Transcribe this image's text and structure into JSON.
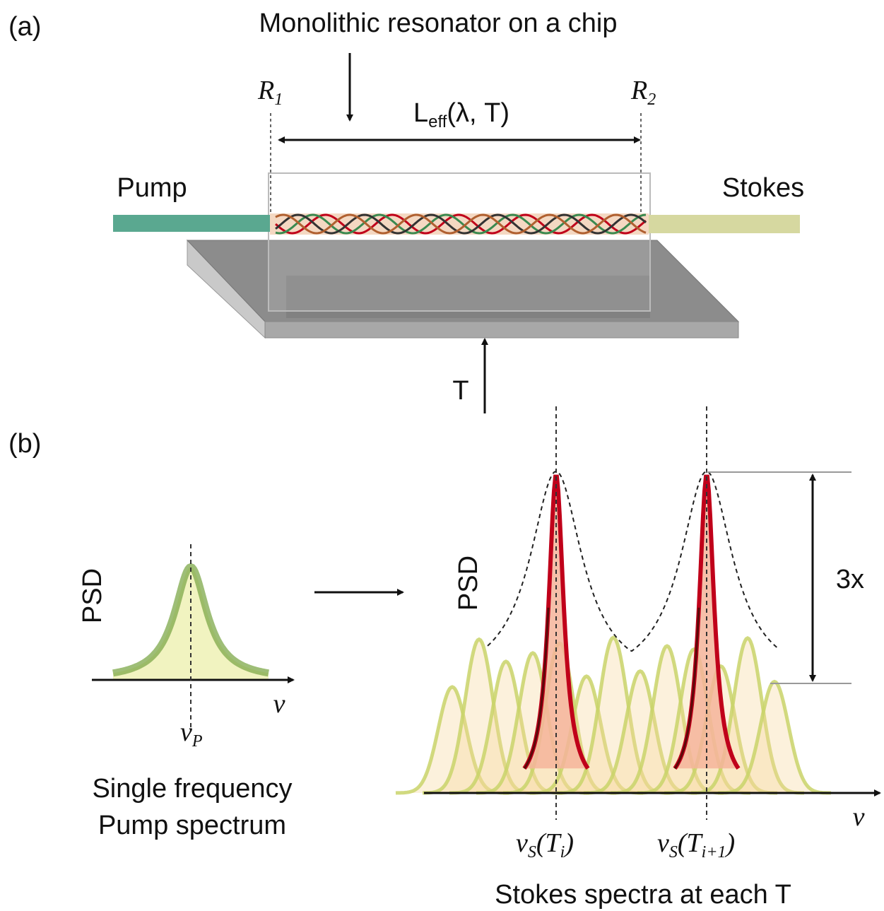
{
  "panel_a": {
    "label": "(a)",
    "title": "Monolithic resonator on a chip",
    "mirror_1": {
      "symbol": "R",
      "subscript": "1"
    },
    "mirror_2": {
      "symbol": "R",
      "subscript": "2"
    },
    "cavity_length": {
      "symbol": "L",
      "subscript": "eff",
      "arguments": "(λ, T)"
    },
    "input": "Pump",
    "output": "Stokes",
    "temperature": "T"
  },
  "panel_b": {
    "label": "(b)",
    "pump": {
      "y_axis": "PSD",
      "x_axis": "ν",
      "peak": {
        "symbol": "ν",
        "subscript": "P"
      },
      "caption": [
        "Single frequency",
        "Pump spectrum"
      ]
    },
    "stokes": {
      "y_axis": "PSD",
      "x_axis": "ν",
      "peak_1": {
        "symbol": "ν",
        "subscript": "S",
        "open": "(T",
        "arg_subscript": "i",
        "close": ")"
      },
      "peak_2": {
        "symbol": "ν",
        "subscript": "S",
        "open": "(T",
        "arg_subscript": "i+1",
        "close": ")"
      },
      "gain": "3x",
      "caption": "Stokes spectra at each T"
    }
  }
}
